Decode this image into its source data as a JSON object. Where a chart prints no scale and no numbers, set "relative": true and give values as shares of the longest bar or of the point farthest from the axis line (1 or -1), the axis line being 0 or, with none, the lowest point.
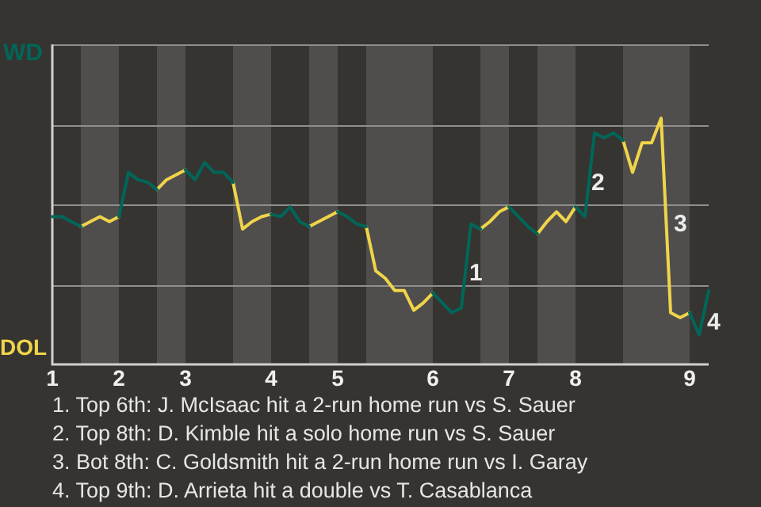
{
  "chart_data": {
    "type": "line",
    "relative": true,
    "categories": [
      "1",
      null,
      null,
      null,
      null,
      null,
      null,
      "2",
      null,
      null,
      null,
      null,
      null,
      null,
      "3",
      null,
      null,
      null,
      null,
      null,
      null,
      null,
      null,
      "4",
      null,
      null,
      null,
      null,
      null,
      null,
      "5",
      null,
      null,
      null,
      null,
      null,
      null,
      null,
      null,
      null,
      "6",
      null,
      null,
      null,
      null,
      null,
      null,
      null,
      "7",
      null,
      null,
      null,
      null,
      null,
      null,
      "8",
      null,
      null,
      null,
      null,
      null,
      null,
      null,
      null,
      null,
      null,
      null,
      "9",
      null,
      null
    ],
    "series": [
      {
        "color": "#00665a",
        "values": [
          0.6,
          0.6,
          0.58,
          0.56,
          null,
          null,
          null,
          0.6,
          0.78,
          0.75,
          0.74,
          0.71,
          null,
          null,
          0.79,
          0.75,
          0.82,
          0.78,
          0.78,
          0.74,
          null,
          null,
          null,
          0.61,
          0.6,
          0.64,
          0.58,
          0.56,
          null,
          null,
          0.62,
          0.6,
          0.57,
          0.56,
          null,
          null,
          null,
          null,
          null,
          null,
          0.29,
          0.25,
          0.21,
          0.23,
          0.57,
          0.55,
          null,
          null,
          0.64,
          0.6,
          0.56,
          0.53,
          null,
          null,
          null,
          0.64,
          0.6,
          0.94,
          0.92,
          0.94,
          0.91,
          null,
          null,
          null,
          null,
          null,
          null,
          0.21,
          0.12,
          0.3
        ]
      },
      {
        "color": "#f0d44a",
        "values": [
          null,
          null,
          null,
          0.56,
          0.58,
          0.6,
          0.58,
          0.6,
          null,
          null,
          null,
          0.71,
          0.75,
          0.77,
          0.79,
          null,
          null,
          null,
          null,
          0.74,
          0.55,
          0.58,
          0.6,
          0.61,
          null,
          null,
          null,
          0.56,
          0.58,
          0.6,
          0.62,
          null,
          null,
          0.56,
          0.38,
          0.35,
          0.3,
          0.3,
          0.22,
          0.25,
          0.29,
          null,
          null,
          null,
          null,
          0.55,
          0.58,
          0.62,
          0.64,
          null,
          null,
          0.53,
          0.58,
          0.62,
          0.58,
          0.64,
          null,
          null,
          null,
          null,
          0.91,
          0.78,
          0.9,
          0.9,
          1,
          0.21,
          0.19,
          0.21,
          null,
          null
        ]
      }
    ],
    "ref_lines": [
      {
        "axis": "y",
        "value": 0.32,
        "color": "#8f8f8f"
      },
      {
        "axis": "y",
        "value": 0.65,
        "color": "#8f8f8f"
      },
      {
        "axis": "y",
        "value": 0.97,
        "color": "#8f8f8f"
      },
      {
        "axis": "y",
        "value": 1.3,
        "color": "#8f8f8f"
      }
    ],
    "annotations": [
      "WD",
      "DOL",
      "1",
      "2",
      "3",
      "4",
      "1. Top 6th: J. McIsaac hit a 2-run home run vs S. Sauer",
      "2. Top 8th: D. Kimble hit a solo home run vs S. Sauer",
      "3. Bot 8th: C. Goldsmith hit a 2-run home run vs I. Garay",
      "4. Top 9th: D. Arrieta hit a double vs T. Casablanca"
    ]
  }
}
